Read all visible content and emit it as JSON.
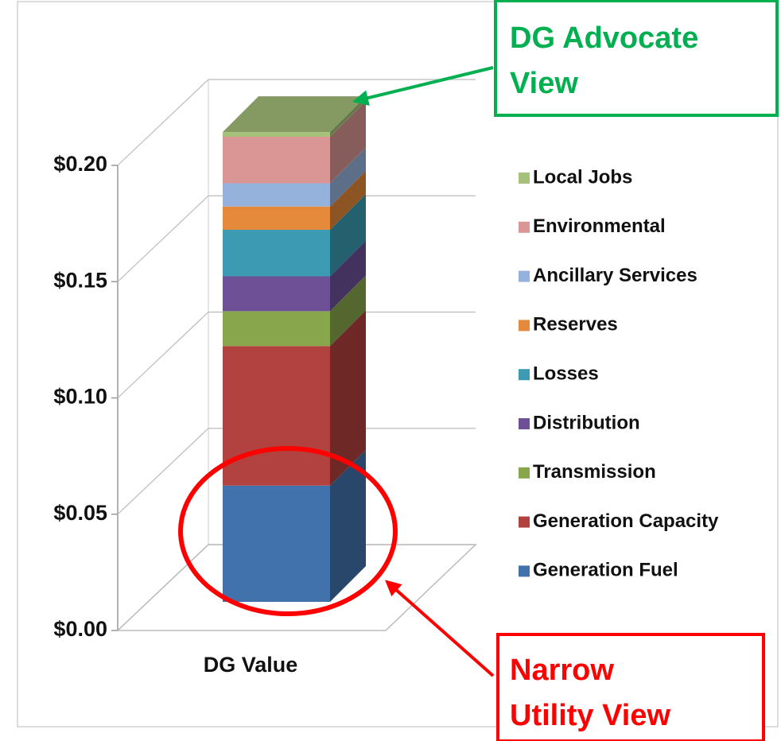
{
  "chart_data": {
    "type": "bar3d-stacked",
    "categories": [
      "DG Value"
    ],
    "series": [
      {
        "name": "Generation Fuel",
        "color": "#4272ab",
        "values": [
          0.05
        ]
      },
      {
        "name": "Generation Capacity",
        "color": "#b1423f",
        "values": [
          0.06
        ]
      },
      {
        "name": "Transmission",
        "color": "#88a64c",
        "values": [
          0.015
        ]
      },
      {
        "name": "Distribution",
        "color": "#6e5097",
        "values": [
          0.015
        ]
      },
      {
        "name": "Losses",
        "color": "#3c9bb2",
        "values": [
          0.02
        ]
      },
      {
        "name": "Reserves",
        "color": "#e5893a",
        "values": [
          0.01
        ]
      },
      {
        "name": "Ancillary Services",
        "color": "#94b2dc",
        "values": [
          0.01
        ]
      },
      {
        "name": "Environmental",
        "color": "#d99695",
        "values": [
          0.02
        ]
      },
      {
        "name": "Local Jobs",
        "color": "#a5c17a",
        "values": [
          0.002
        ]
      }
    ],
    "ylim": [
      0,
      0.2
    ],
    "yticks": [
      {
        "value": 0,
        "label": "$0.00"
      },
      {
        "value": 0.05,
        "label": "$0.05"
      },
      {
        "value": 0.1,
        "label": "$0.10"
      },
      {
        "value": 0.15,
        "label": "$0.15"
      },
      {
        "value": 0.2,
        "label": "$0.20"
      }
    ],
    "grid": true,
    "legend": "right",
    "annotations": [
      {
        "lines": [
          "DG Advocate",
          "View"
        ],
        "color": "#00b050"
      },
      {
        "lines": [
          "Narrow",
          "Utility View"
        ],
        "color": "#ff0000"
      }
    ]
  }
}
